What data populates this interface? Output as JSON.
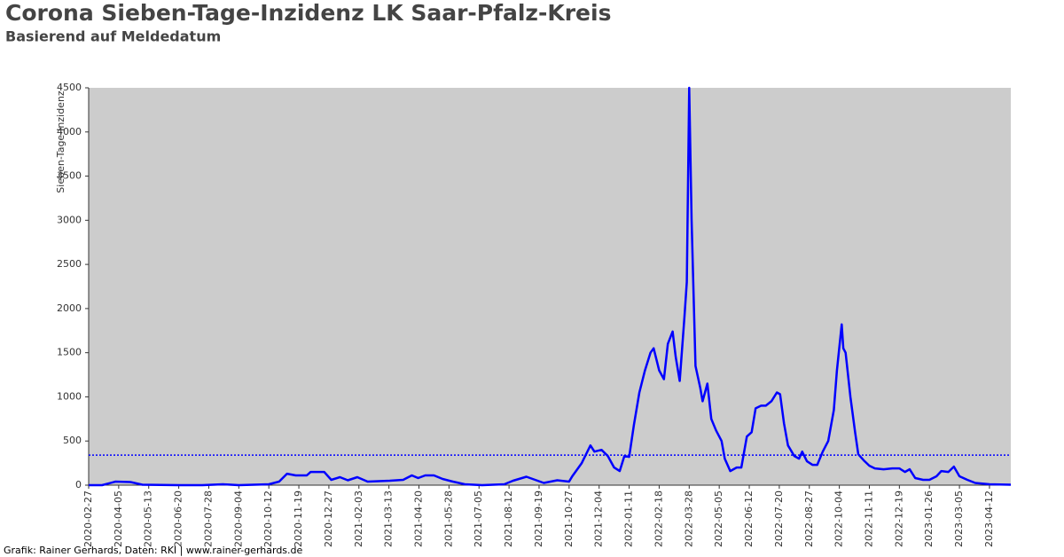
{
  "chart_data": {
    "type": "line",
    "title": "Corona Sieben-Tage-Inzidenz LK Saar-Pfalz-Kreis",
    "subtitle": "Basierend auf Meldedatum",
    "y_label": "Sieben-Tage-Inzidenz",
    "caption": "Grafik: Rainer Gerhards, Daten: RKI | www.rainer-gerhards.de",
    "color": "#0000ff",
    "reference_line": 340,
    "x": [
      "2020-02-27",
      "2020-03-15",
      "2020-04-01",
      "2020-04-20",
      "2020-05-05",
      "2020-06-20",
      "2020-07-20",
      "2020-08-15",
      "2020-09-04",
      "2020-10-12",
      "2020-10-25",
      "2020-11-04",
      "2020-11-15",
      "2020-11-29",
      "2020-12-04",
      "2020-12-21",
      "2020-12-30",
      "2021-01-10",
      "2021-01-20",
      "2021-02-01",
      "2021-02-14",
      "2021-03-14",
      "2021-03-31",
      "2021-04-11",
      "2021-04-19",
      "2021-04-28",
      "2021-05-09",
      "2021-05-20",
      "2021-06-02",
      "2021-06-17",
      "2021-07-09",
      "2021-08-06",
      "2021-08-17",
      "2021-09-03",
      "2021-09-14",
      "2021-09-25",
      "2021-10-12",
      "2021-10-27",
      "2021-10-31",
      "2021-11-12",
      "2021-11-23",
      "2021-11-28",
      "2021-12-07",
      "2021-12-15",
      "2021-12-23",
      "2021-12-30",
      "2022-01-05",
      "2022-01-11",
      "2022-01-17",
      "2022-01-24",
      "2022-01-31",
      "2022-02-07",
      "2022-02-11",
      "2022-02-18",
      "2022-02-24",
      "2022-03-01",
      "2022-03-07",
      "2022-03-11",
      "2022-03-16",
      "2022-03-22",
      "2022-03-25",
      "2022-03-28",
      "2022-03-31",
      "2022-04-05",
      "2022-04-11",
      "2022-04-14",
      "2022-04-20",
      "2022-04-25",
      "2022-05-01",
      "2022-05-08",
      "2022-05-12",
      "2022-05-19",
      "2022-05-27",
      "2022-06-02",
      "2022-06-09",
      "2022-06-15",
      "2022-06-20",
      "2022-06-27",
      "2022-07-03",
      "2022-07-10",
      "2022-07-17",
      "2022-07-21",
      "2022-07-26",
      "2022-07-31",
      "2022-08-08",
      "2022-08-14",
      "2022-08-18",
      "2022-08-24",
      "2022-08-31",
      "2022-09-06",
      "2022-09-13",
      "2022-09-20",
      "2022-09-27",
      "2022-10-01",
      "2022-10-07",
      "2022-10-09",
      "2022-10-12",
      "2022-10-18",
      "2022-10-24",
      "2022-10-28",
      "2022-11-04",
      "2022-11-11",
      "2022-11-18",
      "2022-11-29",
      "2022-12-10",
      "2022-12-19",
      "2022-12-26",
      "2023-01-01",
      "2023-01-08",
      "2023-01-18",
      "2023-01-26",
      "2023-02-04",
      "2023-02-10",
      "2023-02-19",
      "2023-02-26",
      "2023-03-05",
      "2023-03-15",
      "2023-03-25",
      "2023-04-12",
      "2023-05-09"
    ],
    "values": [
      0,
      0,
      40,
      35,
      5,
      0,
      0,
      10,
      0,
      10,
      40,
      130,
      110,
      110,
      150,
      150,
      60,
      90,
      55,
      90,
      40,
      50,
      60,
      110,
      80,
      110,
      110,
      70,
      40,
      10,
      0,
      10,
      50,
      95,
      60,
      25,
      55,
      40,
      100,
      250,
      450,
      380,
      400,
      330,
      200,
      160,
      330,
      320,
      680,
      1050,
      1300,
      1500,
      1550,
      1300,
      1200,
      1600,
      1740,
      1450,
      1180,
      1900,
      2300,
      4500,
      3000,
      1350,
      1100,
      950,
      1150,
      750,
      620,
      500,
      300,
      160,
      200,
      200,
      550,
      600,
      870,
      900,
      900,
      950,
      1050,
      1030,
      700,
      450,
      330,
      300,
      380,
      270,
      230,
      230,
      380,
      500,
      850,
      1300,
      1820,
      1550,
      1500,
      1000,
      600,
      350,
      280,
      220,
      190,
      180,
      190,
      190,
      150,
      180,
      80,
      60,
      60,
      100,
      160,
      150,
      210,
      100,
      60,
      25,
      10,
      5
    ],
    "xlim": [
      "2020-02-27",
      "2023-05-09"
    ],
    "xticks": [
      "2020-02-27",
      "2020-04-05",
      "2020-05-13",
      "2020-06-20",
      "2020-07-28",
      "2020-09-04",
      "2020-10-12",
      "2020-11-19",
      "2020-12-27",
      "2021-02-03",
      "2021-03-13",
      "2021-04-20",
      "2021-05-28",
      "2021-07-05",
      "2021-08-12",
      "2021-09-19",
      "2021-10-27",
      "2021-12-04",
      "2022-01-11",
      "2022-02-18",
      "2022-03-28",
      "2022-05-05",
      "2022-06-12",
      "2022-07-20",
      "2022-08-27",
      "2022-10-04",
      "2022-11-11",
      "2022-12-19",
      "2023-01-26",
      "2023-03-05",
      "2023-04-12"
    ],
    "ylim": [
      0,
      4500
    ],
    "yticks": [
      0,
      500,
      1000,
      1500,
      2000,
      2500,
      3000,
      3500,
      4000,
      4500
    ]
  }
}
